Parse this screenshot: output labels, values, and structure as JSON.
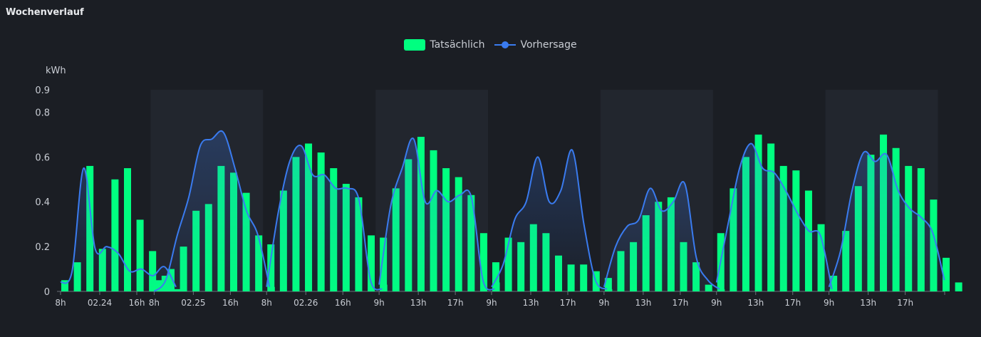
{
  "title": "Wochenverlauf",
  "colors": {
    "background": "#1b1e24",
    "band": "#22262e",
    "actual": "#00ff80",
    "forecast": "#3a7bef",
    "axis_text": "#c9cdd4"
  },
  "chart_data": {
    "type": "bar",
    "ylabel": "kWh",
    "ylim": [
      0,
      0.9
    ],
    "yticks": [
      0,
      0.2,
      0.4,
      0.6,
      0.8,
      0.9
    ],
    "grid": false,
    "legend_position": "top-center",
    "series": [
      {
        "name": "Tatsächlich",
        "kind": "bar"
      },
      {
        "name": "Vorhersage",
        "kind": "line"
      }
    ],
    "days": [
      {
        "label": "02.24",
        "start_hour": 8,
        "shaded": false,
        "tick_labels": [
          "8h",
          "02.24",
          "16h"
        ],
        "tick_hours": [
          8,
          12,
          16
        ],
        "actual": [
          0.05,
          0.13,
          0.56,
          0.19,
          0.5,
          0.55,
          0.32,
          0.18,
          0.07,
          0.01
        ],
        "forecast": [
          0.04,
          0.09,
          0.55,
          0.19,
          0.2,
          0.17,
          0.09,
          0.1,
          0.07,
          0.11,
          0.02
        ]
      },
      {
        "label": "02.25",
        "start_hour": 8,
        "shaded": true,
        "tick_labels": [
          "8h",
          "02.25",
          "16h"
        ],
        "tick_hours": [
          8,
          12,
          16
        ],
        "actual": [
          0.05,
          0.1,
          0.2,
          0.36,
          0.39,
          0.56,
          0.53,
          0.44,
          0.25,
          0.02
        ],
        "forecast": [
          0.0,
          0.05,
          0.25,
          0.42,
          0.65,
          0.68,
          0.71,
          0.55,
          0.36,
          0.25,
          0.02
        ]
      },
      {
        "label": "02.26",
        "start_hour": 8,
        "shaded": false,
        "tick_labels": [
          "8h",
          "02.26",
          "16h"
        ],
        "tick_hours": [
          8,
          12,
          16
        ],
        "actual": [
          0.21,
          0.45,
          0.6,
          0.66,
          0.62,
          0.55,
          0.48,
          0.42,
          0.25,
          0.03
        ],
        "forecast": [
          0.02,
          0.35,
          0.58,
          0.65,
          0.52,
          0.52,
          0.46,
          0.46,
          0.41,
          0.05,
          0.01
        ]
      },
      {
        "label": "9h",
        "start_hour": 8,
        "shaded": true,
        "tick_labels": [
          "9h",
          "13h",
          "17h"
        ],
        "tick_hours": [
          9,
          13,
          17
        ],
        "actual": [
          0.24,
          0.46,
          0.59,
          0.69,
          0.63,
          0.55,
          0.51,
          0.43,
          0.26,
          0.04
        ],
        "forecast": [
          0.03,
          0.38,
          0.55,
          0.68,
          0.4,
          0.45,
          0.4,
          0.43,
          0.42,
          0.05,
          0.01
        ]
      },
      {
        "label": "9h",
        "start_hour": 8,
        "shaded": false,
        "tick_labels": [
          "9h",
          "13h",
          "17h"
        ],
        "tick_hours": [
          9,
          13,
          17
        ],
        "actual": [
          0.13,
          0.24,
          0.22,
          0.3,
          0.26,
          0.16,
          0.12,
          0.12,
          0.09,
          0.01
        ],
        "forecast": [
          0.02,
          0.12,
          0.32,
          0.4,
          0.6,
          0.4,
          0.45,
          0.63,
          0.3,
          0.05,
          0.01
        ]
      },
      {
        "label": "9h",
        "start_hour": 8,
        "shaded": true,
        "tick_labels": [
          "9h",
          "13h",
          "17h"
        ],
        "tick_hours": [
          9,
          13,
          17
        ],
        "actual": [
          0.06,
          0.18,
          0.22,
          0.34,
          0.4,
          0.42,
          0.22,
          0.13,
          0.03,
          0.01
        ],
        "forecast": [
          0.02,
          0.2,
          0.29,
          0.32,
          0.46,
          0.36,
          0.4,
          0.48,
          0.15,
          0.05,
          0.01
        ]
      },
      {
        "label": "9h",
        "start_hour": 8,
        "shaded": false,
        "tick_labels": [
          "9h",
          "13h",
          "17h"
        ],
        "tick_hours": [
          9,
          13,
          17
        ],
        "actual": [
          0.26,
          0.46,
          0.6,
          0.7,
          0.66,
          0.56,
          0.54,
          0.45,
          0.3,
          0.07
        ],
        "forecast": [
          0.04,
          0.3,
          0.55,
          0.66,
          0.55,
          0.53,
          0.45,
          0.35,
          0.27,
          0.25,
          0.01
        ]
      },
      {
        "label": "9h",
        "start_hour": 8,
        "shaded": true,
        "tick_labels": [
          "9h",
          "13h",
          "17h"
        ],
        "tick_hours": [
          9,
          13,
          17
        ],
        "actual": [
          0.01,
          0.27,
          0.47,
          0.61,
          0.7,
          0.64,
          0.56,
          0.55,
          0.41,
          0.15,
          0.04
        ],
        "forecast": [
          0.02,
          0.18,
          0.45,
          0.62,
          0.58,
          0.61,
          0.45,
          0.37,
          0.33,
          0.26,
          0.05
        ]
      }
    ]
  }
}
